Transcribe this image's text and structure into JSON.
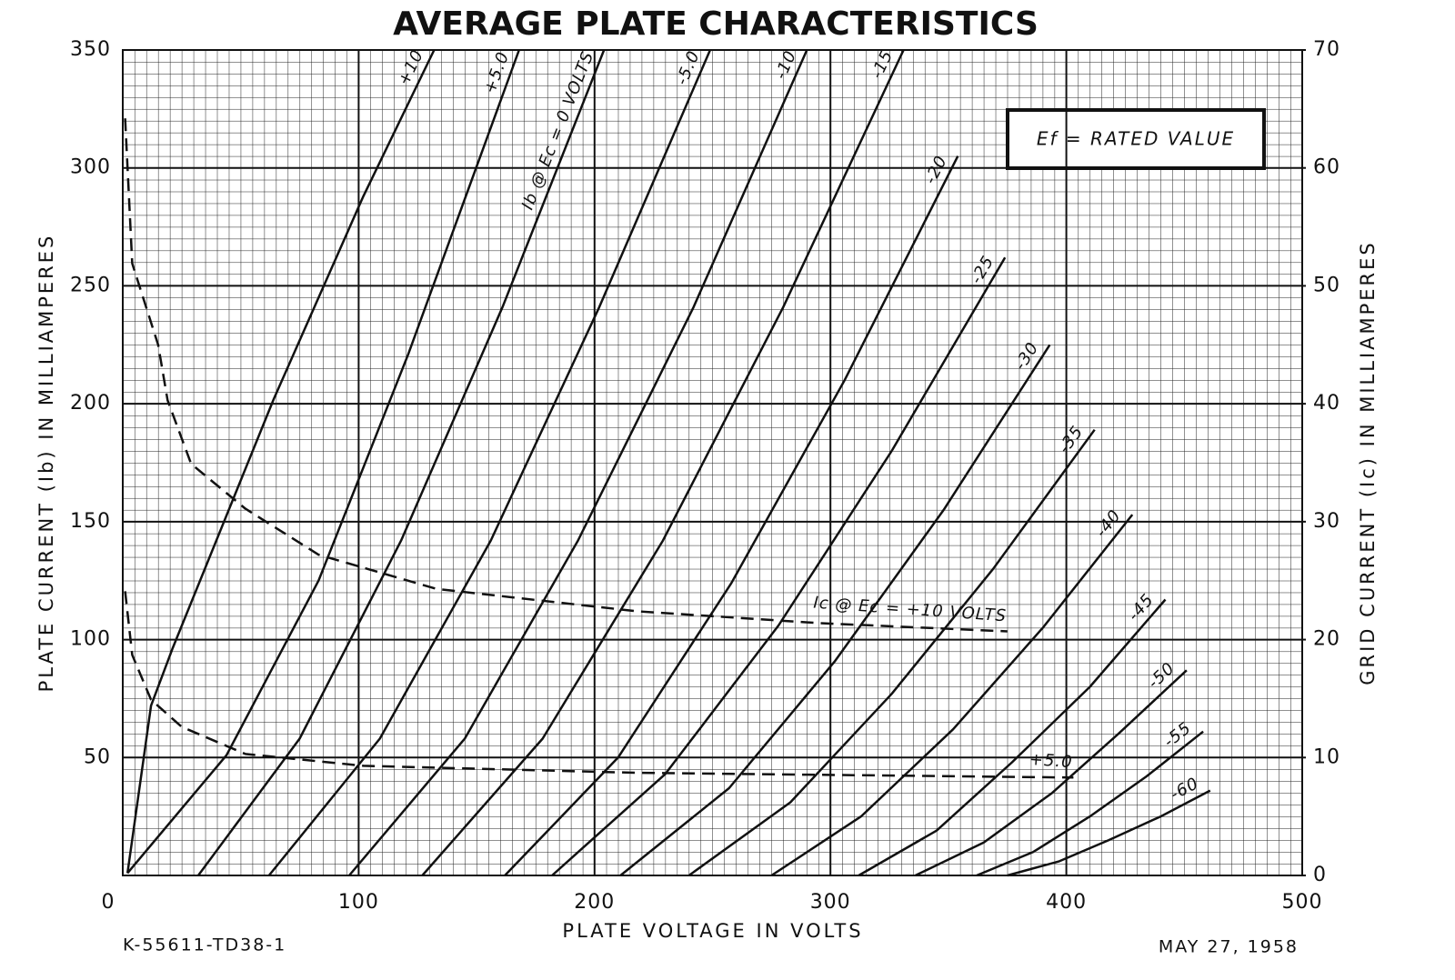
{
  "chart_data": {
    "type": "line",
    "title": "AVERAGE PLATE CHARACTERISTICS",
    "x_label": "PLATE VOLTAGE IN VOLTS",
    "y_label": "PLATE CURRENT (Ib) IN MILLIAMPERES",
    "y2_label": "GRID CURRENT (Ic) IN MILLIAMPERES",
    "annotation": "Ef = RATED VALUE",
    "footer_left": "K-55611-TD38-1",
    "footer_right": "MAY 27, 1958",
    "xlim": [
      0,
      500
    ],
    "xticks": [
      0,
      100,
      200,
      300,
      400,
      500
    ],
    "ylim": [
      0,
      350
    ],
    "yticks": [
      50,
      100,
      150,
      200,
      250,
      300,
      350
    ],
    "y2lim": [
      0,
      70
    ],
    "y2ticks": [
      0,
      10,
      20,
      30,
      40,
      50,
      60,
      70
    ],
    "grid": true,
    "series": [
      {
        "name": "+10",
        "color": "#111",
        "x": [
          2,
          12,
          21,
          64,
          102,
          132
        ],
        "values": [
          1,
          72,
          96,
          202,
          288,
          350
        ]
      },
      {
        "name": "+5.0",
        "color": "#111",
        "x": [
          2,
          44,
          83,
          121,
          168
        ],
        "values": [
          1,
          51,
          125,
          221,
          350
        ]
      },
      {
        "name": "Ib @ Ec = 0 VOLTS",
        "color": "#111",
        "x": [
          32,
          75,
          118,
          161,
          204
        ],
        "values": [
          0,
          58,
          142,
          241,
          350
        ]
      },
      {
        "name": "-5.0",
        "color": "#111",
        "x": [
          62,
          109,
          156,
          202,
          249
        ],
        "values": [
          0,
          58,
          142,
          241,
          350
        ]
      },
      {
        "name": "-10",
        "color": "#111",
        "x": [
          96,
          145,
          193,
          242,
          290
        ],
        "values": [
          0,
          58,
          142,
          241,
          350
        ]
      },
      {
        "name": "-15",
        "color": "#111",
        "x": [
          127,
          178,
          229,
          280,
          331
        ],
        "values": [
          0,
          58,
          142,
          241,
          350
        ]
      },
      {
        "name": "-20",
        "color": "#111",
        "x": [
          162,
          210,
          258,
          306,
          354
        ],
        "values": [
          0,
          50,
          124,
          210,
          305
        ]
      },
      {
        "name": "-25",
        "color": "#111",
        "x": [
          182,
          230,
          278,
          326,
          374
        ],
        "values": [
          0,
          43,
          106,
          180,
          262
        ]
      },
      {
        "name": "-30",
        "color": "#111",
        "x": [
          211,
          257,
          302,
          348,
          393
        ],
        "values": [
          0,
          37,
          91,
          155,
          225
        ]
      },
      {
        "name": "-35",
        "color": "#111",
        "x": [
          240,
          283,
          326,
          369,
          412
        ],
        "values": [
          0,
          31,
          77,
          130,
          189
        ]
      },
      {
        "name": "-40",
        "color": "#111",
        "x": [
          275,
          313,
          352,
          390,
          428
        ],
        "values": [
          0,
          25,
          62,
          105,
          153
        ]
      },
      {
        "name": "-45",
        "color": "#111",
        "x": [
          312,
          345,
          377,
          410,
          442
        ],
        "values": [
          0,
          19,
          48,
          80,
          117
        ]
      },
      {
        "name": "-50",
        "color": "#111",
        "x": [
          336,
          365,
          394,
          422,
          451
        ],
        "values": [
          0,
          14,
          35,
          60,
          87
        ]
      },
      {
        "name": "-55",
        "color": "#111",
        "x": [
          362,
          386,
          410,
          434,
          458
        ],
        "values": [
          0,
          10,
          25,
          42,
          61
        ]
      },
      {
        "name": "-60",
        "color": "#111",
        "x": [
          375,
          397,
          418,
          440,
          461
        ],
        "values": [
          0,
          6,
          15,
          25,
          36
        ]
      },
      {
        "name": "Ic @ Ec = +10 VOLTS",
        "color": "#111",
        "axis": "y2",
        "line_style": "dashed",
        "x": [
          1,
          4,
          15,
          19,
          29,
          52,
          83,
          133,
          218,
          295,
          375
        ],
        "values": [
          64.2,
          51.9,
          45,
          40.3,
          34.9,
          31.1,
          27.2,
          24.3,
          22.4,
          21.4,
          20.7
        ]
      },
      {
        "name": "+5.0",
        "color": "#111",
        "axis": "y2",
        "line_style": "dashed",
        "x": [
          1,
          4,
          12,
          25,
          52,
          102,
          218,
          403
        ],
        "values": [
          24.1,
          18.7,
          14.9,
          12.6,
          10.3,
          9.3,
          8.7,
          8.3
        ]
      }
    ]
  }
}
